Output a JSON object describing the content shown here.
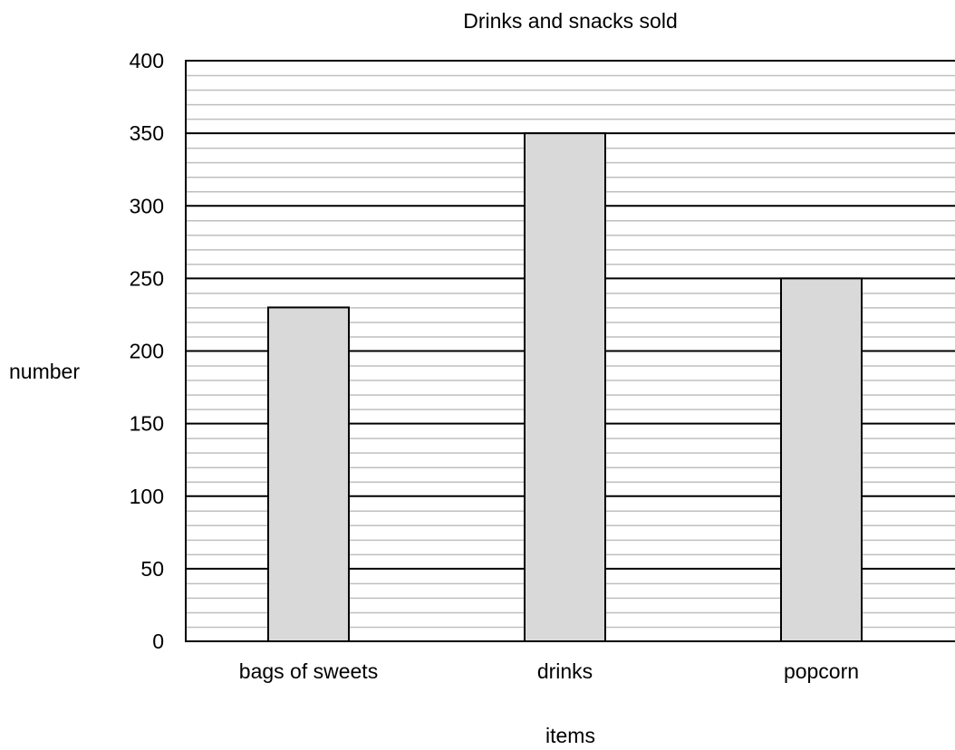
{
  "chart_data": {
    "type": "bar",
    "title": "Drinks and snacks sold",
    "xlabel": "items",
    "ylabel": "number",
    "categories": [
      "bags of sweets",
      "drinks",
      "popcorn"
    ],
    "values": [
      230,
      350,
      250
    ],
    "ylim": [
      0,
      400
    ],
    "y_ticks": [
      0,
      50,
      100,
      150,
      200,
      250,
      300,
      350,
      400
    ],
    "y_tick_labels": [
      "0",
      "50",
      "100",
      "150",
      "200",
      "250",
      "300",
      "350",
      "400"
    ],
    "major_grid_step": 50,
    "minor_grid_step": 10,
    "grid": true,
    "legend": "none",
    "colors": {
      "bar_fill": "#d9d9d9",
      "bar_stroke": "#000000",
      "major_grid": "#000000",
      "minor_grid": "#bfbfbf",
      "axis": "#000000",
      "background": "#ffffff"
    }
  }
}
